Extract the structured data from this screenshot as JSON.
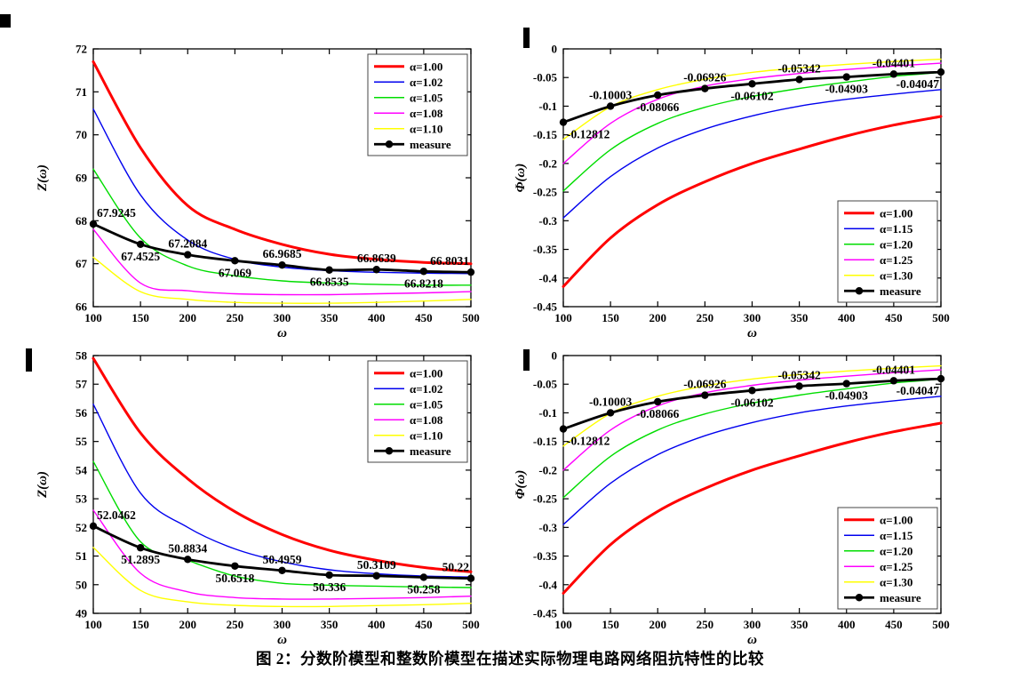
{
  "figure": {
    "caption": "图 2：分数阶模型和整数阶模型在描述实际物理电路网络阻抗特性的比较"
  },
  "chart_data": [
    {
      "id": "impedance-top",
      "type": "line",
      "xlabel": "ω",
      "ylabel": "Z(ω)",
      "xlim": [
        100,
        500
      ],
      "ylim": [
        66,
        72
      ],
      "xticks": [
        100,
        150,
        200,
        250,
        300,
        350,
        400,
        450,
        500
      ],
      "yticks": [
        66,
        67,
        68,
        69,
        70,
        71,
        72
      ],
      "grid": false,
      "legend_pos": "ne",
      "x": [
        100,
        150,
        200,
        250,
        300,
        350,
        400,
        450,
        500
      ],
      "series": [
        {
          "name": "α=1.00",
          "color": "#ff0000",
          "width": 3,
          "marker": false,
          "values": [
            71.7,
            69.7,
            68.35,
            67.8,
            67.45,
            67.22,
            67.1,
            67.03,
            67.0
          ]
        },
        {
          "name": "α=1.02",
          "color": "#0000ee",
          "width": 1.4,
          "marker": false,
          "values": [
            70.6,
            68.6,
            67.55,
            67.1,
            66.92,
            66.84,
            66.8,
            66.78,
            66.77
          ]
        },
        {
          "name": "α=1.05",
          "color": "#00dd00",
          "width": 1.4,
          "marker": false,
          "values": [
            69.2,
            67.6,
            66.95,
            66.72,
            66.6,
            66.55,
            66.52,
            66.5,
            66.5
          ]
        },
        {
          "name": "α=1.08",
          "color": "#ff00ff",
          "width": 1.4,
          "marker": false,
          "values": [
            67.8,
            66.55,
            66.37,
            66.3,
            66.28,
            66.28,
            66.3,
            66.32,
            66.35
          ]
        },
        {
          "name": "α=1.10",
          "color": "#ffff00",
          "width": 1.4,
          "marker": false,
          "values": [
            67.15,
            66.35,
            66.17,
            66.1,
            66.08,
            66.08,
            66.1,
            66.13,
            66.17
          ]
        },
        {
          "name": "measure",
          "color": "#000000",
          "width": 2.8,
          "marker": true,
          "values": [
            67.9245,
            67.4525,
            67.2084,
            67.069,
            66.9685,
            66.8535,
            66.8639,
            66.8218,
            66.8031
          ]
        }
      ],
      "point_labels": [
        {
          "x": 100,
          "text": "67.9245",
          "side": "above",
          "anchor": "start"
        },
        {
          "x": 150,
          "text": "67.4525",
          "side": "below",
          "anchor": "middle"
        },
        {
          "x": 200,
          "text": "67.2084",
          "side": "above",
          "anchor": "middle"
        },
        {
          "x": 250,
          "text": "67.069",
          "side": "below",
          "anchor": "middle"
        },
        {
          "x": 300,
          "text": "66.9685",
          "side": "above",
          "anchor": "middle"
        },
        {
          "x": 350,
          "text": "66.8535",
          "side": "below",
          "anchor": "middle"
        },
        {
          "x": 400,
          "text": "66.8639",
          "side": "above",
          "anchor": "middle"
        },
        {
          "x": 450,
          "text": "66.8218",
          "side": "below",
          "anchor": "middle"
        },
        {
          "x": 500,
          "text": "66.8031",
          "side": "above",
          "anchor": "end"
        }
      ]
    },
    {
      "id": "phase-top",
      "type": "line",
      "xlabel": "ω",
      "ylabel": "Φ(ω)",
      "xlim": [
        100,
        500
      ],
      "ylim": [
        -0.45,
        0
      ],
      "xticks": [
        100,
        150,
        200,
        250,
        300,
        350,
        400,
        450,
        500
      ],
      "yticks": [
        0,
        -0.05,
        -0.1,
        -0.15,
        -0.2,
        -0.25,
        -0.3,
        -0.35,
        -0.4,
        -0.45
      ],
      "grid": false,
      "legend_pos": "se",
      "x": [
        100,
        150,
        200,
        250,
        300,
        350,
        400,
        450,
        500
      ],
      "series": [
        {
          "name": "α=1.00",
          "color": "#ff0000",
          "width": 3,
          "marker": false,
          "values": [
            -0.415,
            -0.33,
            -0.272,
            -0.232,
            -0.2,
            -0.175,
            -0.152,
            -0.133,
            -0.118
          ]
        },
        {
          "name": "α=1.15",
          "color": "#0000ee",
          "width": 1.4,
          "marker": false,
          "values": [
            -0.295,
            -0.223,
            -0.173,
            -0.14,
            -0.117,
            -0.1,
            -0.088,
            -0.079,
            -0.071
          ]
        },
        {
          "name": "α=1.20",
          "color": "#00dd00",
          "width": 1.4,
          "marker": false,
          "values": [
            -0.248,
            -0.176,
            -0.13,
            -0.102,
            -0.083,
            -0.069,
            -0.058,
            -0.048,
            -0.041
          ]
        },
        {
          "name": "α=1.25",
          "color": "#ff00ff",
          "width": 1.4,
          "marker": false,
          "values": [
            -0.2,
            -0.13,
            -0.088,
            -0.065,
            -0.052,
            -0.043,
            -0.036,
            -0.03,
            -0.025
          ]
        },
        {
          "name": "α=1.30",
          "color": "#ffff00",
          "width": 1.4,
          "marker": false,
          "values": [
            -0.158,
            -0.101,
            -0.071,
            -0.053,
            -0.041,
            -0.033,
            -0.027,
            -0.022,
            -0.018
          ]
        },
        {
          "name": "measure",
          "color": "#000000",
          "width": 2.8,
          "marker": true,
          "values": [
            -0.12812,
            -0.10003,
            -0.08066,
            -0.06926,
            -0.06102,
            -0.05342,
            -0.04903,
            -0.04401,
            -0.04047
          ]
        }
      ],
      "point_labels": [
        {
          "x": 100,
          "text": "-0.12812",
          "side": "below",
          "anchor": "start"
        },
        {
          "x": 150,
          "text": "-0.10003",
          "side": "above",
          "anchor": "middle"
        },
        {
          "x": 200,
          "text": "-0.08066",
          "side": "below",
          "anchor": "middle"
        },
        {
          "x": 250,
          "text": "-0.06926",
          "side": "above",
          "anchor": "middle"
        },
        {
          "x": 300,
          "text": "-0.06102",
          "side": "below",
          "anchor": "middle"
        },
        {
          "x": 350,
          "text": "-0.05342",
          "side": "above",
          "anchor": "middle"
        },
        {
          "x": 400,
          "text": "-0.04903",
          "side": "below",
          "anchor": "middle"
        },
        {
          "x": 450,
          "text": "-0.04401",
          "side": "above",
          "anchor": "middle"
        },
        {
          "x": 500,
          "text": "-0.04047",
          "side": "below",
          "anchor": "end"
        }
      ]
    },
    {
      "id": "impedance-bottom",
      "type": "line",
      "xlabel": "ω",
      "ylabel": "Z(ω)",
      "xlim": [
        100,
        500
      ],
      "ylim": [
        49,
        58
      ],
      "xticks": [
        100,
        150,
        200,
        250,
        300,
        350,
        400,
        450,
        500
      ],
      "yticks": [
        49,
        50,
        51,
        52,
        53,
        54,
        55,
        56,
        57,
        58
      ],
      "grid": false,
      "legend_pos": "ne",
      "x": [
        100,
        150,
        200,
        250,
        300,
        350,
        400,
        450,
        500
      ],
      "series": [
        {
          "name": "α=1.00",
          "color": "#ff0000",
          "width": 3,
          "marker": false,
          "values": [
            57.9,
            55.3,
            53.7,
            52.55,
            51.75,
            51.2,
            50.85,
            50.6,
            50.45
          ]
        },
        {
          "name": "α=1.02",
          "color": "#0000ee",
          "width": 1.4,
          "marker": false,
          "values": [
            56.3,
            53.2,
            52.0,
            51.25,
            50.8,
            50.52,
            50.38,
            50.3,
            50.27
          ]
        },
        {
          "name": "α=1.05",
          "color": "#00dd00",
          "width": 1.4,
          "marker": false,
          "values": [
            54.3,
            51.5,
            50.85,
            50.3,
            50.05,
            49.98,
            49.95,
            49.92,
            49.9
          ]
        },
        {
          "name": "α=1.08",
          "color": "#ff00ff",
          "width": 1.4,
          "marker": false,
          "values": [
            52.6,
            50.4,
            49.75,
            49.55,
            49.5,
            49.5,
            49.52,
            49.55,
            49.6
          ]
        },
        {
          "name": "α=1.10",
          "color": "#ffff00",
          "width": 1.4,
          "marker": false,
          "values": [
            51.3,
            49.8,
            49.4,
            49.28,
            49.24,
            49.24,
            49.27,
            49.3,
            49.35
          ]
        },
        {
          "name": "measure",
          "color": "#000000",
          "width": 2.8,
          "marker": true,
          "values": [
            52.0462,
            51.2895,
            50.8834,
            50.6518,
            50.4959,
            50.336,
            50.3109,
            50.258,
            50.22
          ]
        }
      ],
      "point_labels": [
        {
          "x": 100,
          "text": "52.0462",
          "side": "above",
          "anchor": "start"
        },
        {
          "x": 150,
          "text": "51.2895",
          "side": "below",
          "anchor": "middle"
        },
        {
          "x": 200,
          "text": "50.8834",
          "side": "above",
          "anchor": "middle"
        },
        {
          "x": 250,
          "text": "50.6518",
          "side": "below",
          "anchor": "middle"
        },
        {
          "x": 300,
          "text": "50.4959",
          "side": "above",
          "anchor": "middle"
        },
        {
          "x": 350,
          "text": "50.336",
          "side": "below",
          "anchor": "middle"
        },
        {
          "x": 400,
          "text": "50.3109",
          "side": "above",
          "anchor": "middle"
        },
        {
          "x": 450,
          "text": "50.258",
          "side": "below",
          "anchor": "middle"
        },
        {
          "x": 500,
          "text": "50.22",
          "side": "above",
          "anchor": "end"
        }
      ]
    },
    {
      "id": "phase-bottom",
      "type": "line",
      "xlabel": "ω",
      "ylabel": "Φ(ω)",
      "xlim": [
        100,
        500
      ],
      "ylim": [
        -0.45,
        0
      ],
      "xticks": [
        100,
        150,
        200,
        250,
        300,
        350,
        400,
        450,
        500
      ],
      "yticks": [
        0,
        -0.05,
        -0.1,
        -0.15,
        -0.2,
        -0.25,
        -0.3,
        -0.35,
        -0.4,
        -0.45
      ],
      "grid": false,
      "legend_pos": "se",
      "x": [
        100,
        150,
        200,
        250,
        300,
        350,
        400,
        450,
        500
      ],
      "series": [
        {
          "name": "α=1.00",
          "color": "#ff0000",
          "width": 3,
          "marker": false,
          "values": [
            -0.415,
            -0.33,
            -0.272,
            -0.232,
            -0.2,
            -0.175,
            -0.152,
            -0.133,
            -0.118
          ]
        },
        {
          "name": "α=1.15",
          "color": "#0000ee",
          "width": 1.4,
          "marker": false,
          "values": [
            -0.295,
            -0.223,
            -0.173,
            -0.14,
            -0.117,
            -0.1,
            -0.088,
            -0.079,
            -0.071
          ]
        },
        {
          "name": "α=1.20",
          "color": "#00dd00",
          "width": 1.4,
          "marker": false,
          "values": [
            -0.248,
            -0.176,
            -0.13,
            -0.102,
            -0.083,
            -0.069,
            -0.058,
            -0.048,
            -0.041
          ]
        },
        {
          "name": "α=1.25",
          "color": "#ff00ff",
          "width": 1.4,
          "marker": false,
          "values": [
            -0.2,
            -0.13,
            -0.088,
            -0.065,
            -0.052,
            -0.043,
            -0.036,
            -0.03,
            -0.025
          ]
        },
        {
          "name": "α=1.30",
          "color": "#ffff00",
          "width": 1.4,
          "marker": false,
          "values": [
            -0.158,
            -0.101,
            -0.071,
            -0.053,
            -0.041,
            -0.033,
            -0.027,
            -0.022,
            -0.018
          ]
        },
        {
          "name": "measure",
          "color": "#000000",
          "width": 2.8,
          "marker": true,
          "values": [
            -0.12812,
            -0.10003,
            -0.08066,
            -0.06926,
            -0.06102,
            -0.05342,
            -0.04903,
            -0.04401,
            -0.04047
          ]
        }
      ],
      "point_labels": [
        {
          "x": 100,
          "text": "-0.12812",
          "side": "below",
          "anchor": "start"
        },
        {
          "x": 150,
          "text": "-0.10003",
          "side": "above",
          "anchor": "middle"
        },
        {
          "x": 200,
          "text": "-0.08066",
          "side": "below",
          "anchor": "middle"
        },
        {
          "x": 250,
          "text": "-0.06926",
          "side": "above",
          "anchor": "middle"
        },
        {
          "x": 300,
          "text": "-0.06102",
          "side": "below",
          "anchor": "middle"
        },
        {
          "x": 350,
          "text": "-0.05342",
          "side": "above",
          "anchor": "middle"
        },
        {
          "x": 400,
          "text": "-0.04903",
          "side": "below",
          "anchor": "middle"
        },
        {
          "x": 450,
          "text": "-0.04401",
          "side": "above",
          "anchor": "middle"
        },
        {
          "x": 500,
          "text": "-0.04047",
          "side": "below",
          "anchor": "end"
        }
      ]
    }
  ]
}
